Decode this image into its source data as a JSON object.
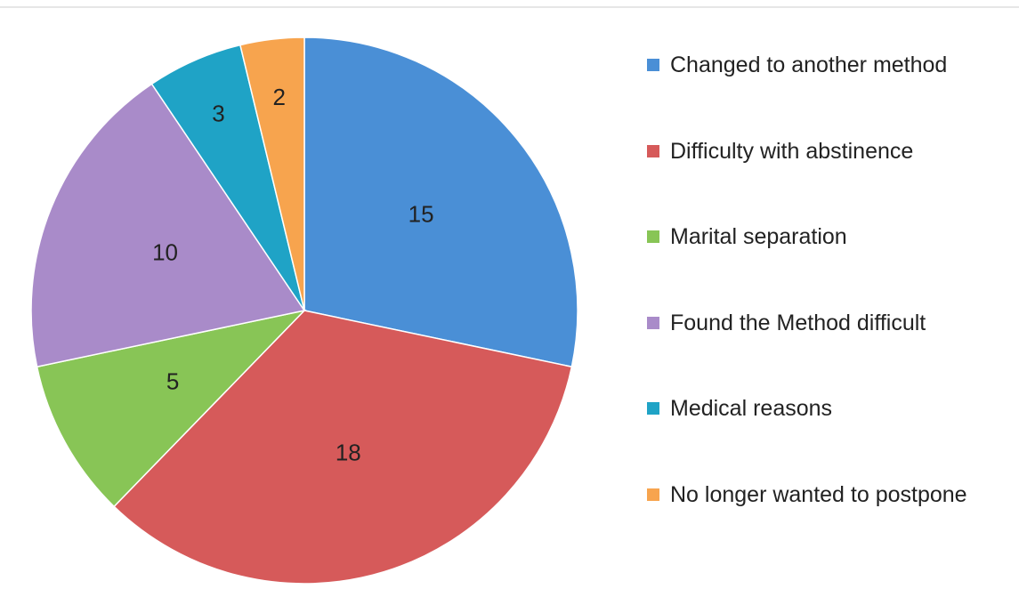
{
  "chart_data": {
    "type": "pie",
    "categories": [
      "Changed to another method",
      "Difficulty with abstinence",
      "Marital separation",
      "Found the Method difficult",
      "Medical reasons",
      "No longer wanted to postpone"
    ],
    "values": [
      15,
      18,
      5,
      10,
      3,
      2
    ],
    "colors": [
      "#4a8fd6",
      "#d65a5a",
      "#88c556",
      "#a98bc9",
      "#1fa3c6",
      "#f7a44e"
    ],
    "legend": "right"
  }
}
